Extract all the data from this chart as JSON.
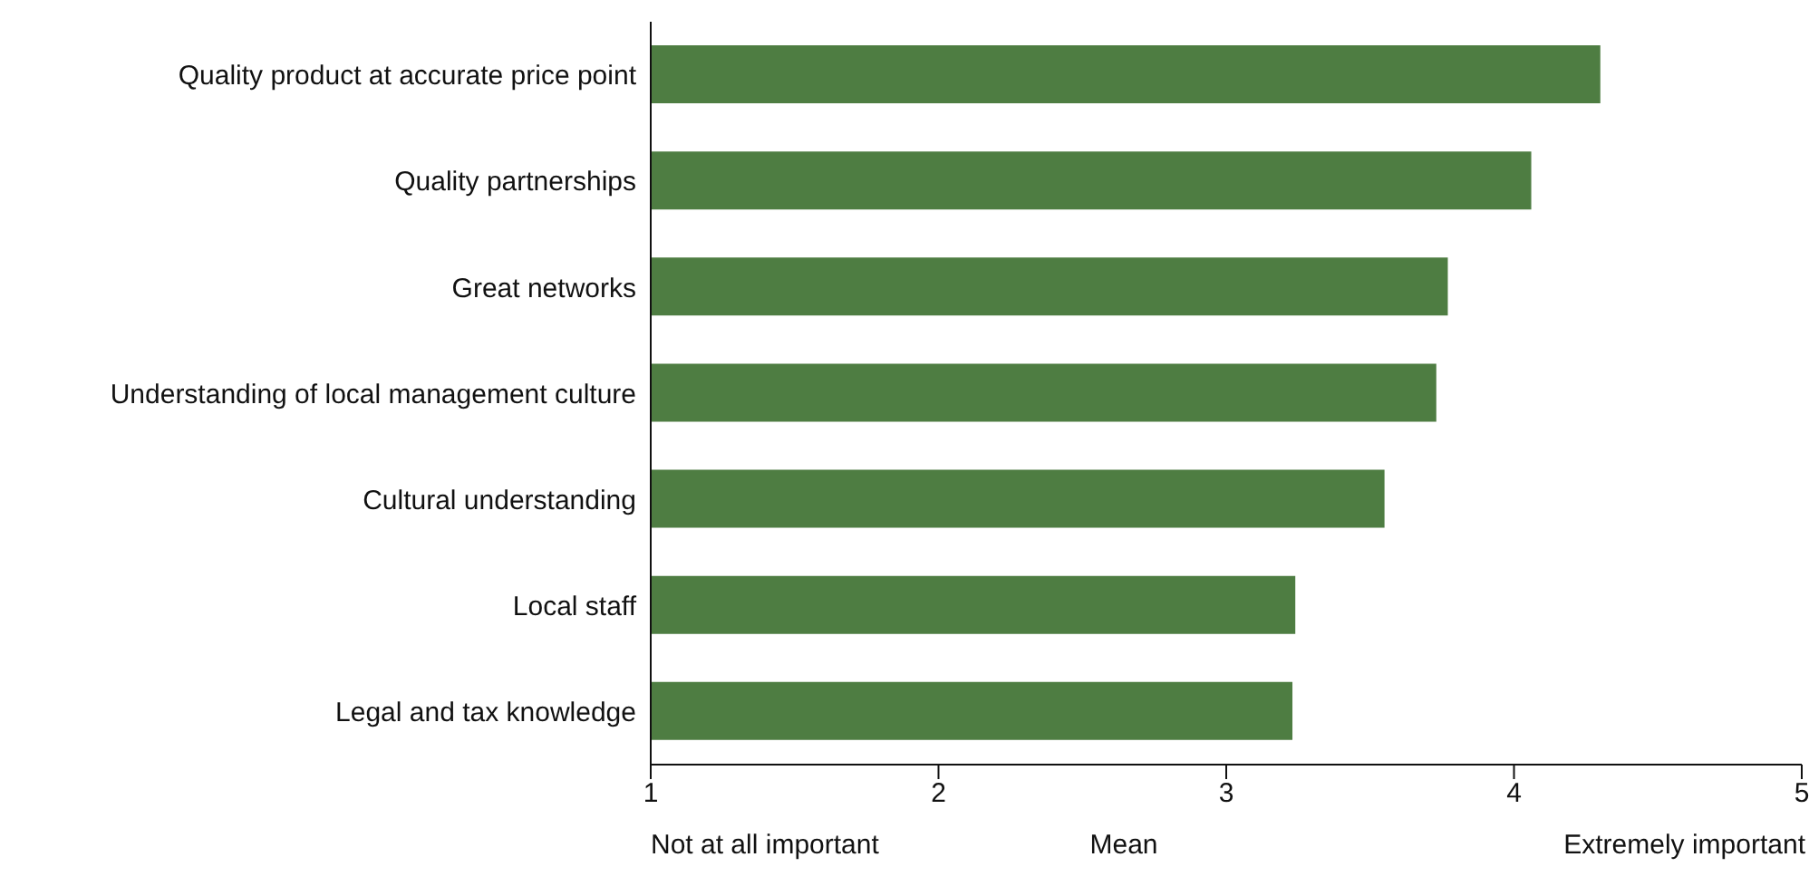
{
  "chart_data": {
    "type": "bar",
    "orientation": "horizontal",
    "categories": [
      "Quality product at accurate price point",
      "Quality partnerships",
      "Great networks",
      "Understanding of local management culture",
      "Cultural understanding",
      "Local staff",
      "Legal and tax knowledge"
    ],
    "values": [
      4.3,
      4.06,
      3.77,
      3.73,
      3.55,
      3.24,
      3.23
    ],
    "color": "#4e7d42",
    "xlim": [
      1,
      5
    ],
    "xticks": [
      1,
      2,
      3,
      4,
      5
    ],
    "xlabel": "Mean",
    "grid": false,
    "legend": false,
    "annotations": [
      "Not at all important",
      "Extremely important"
    ]
  }
}
